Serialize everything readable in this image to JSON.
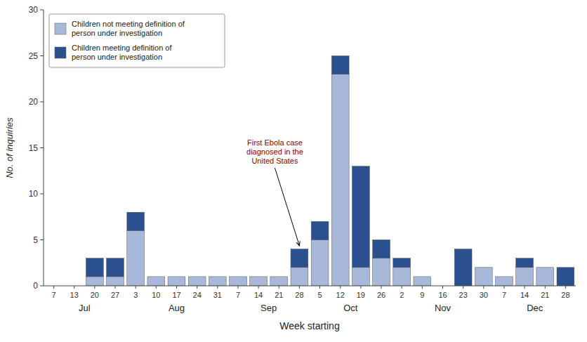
{
  "chart_data": {
    "type": "bar",
    "stacked": true,
    "categories": [
      "7",
      "13",
      "20",
      "27",
      "3",
      "10",
      "17",
      "24",
      "31",
      "7",
      "14",
      "21",
      "28",
      "5",
      "12",
      "19",
      "26",
      "2",
      "9",
      "16",
      "23",
      "30",
      "7",
      "14",
      "21",
      "28"
    ],
    "month_labels": [
      "Jul",
      "Aug",
      "Sep",
      "Oct",
      "Nov",
      "Dec"
    ],
    "series": [
      {
        "name": "Children not meeting definition of\nperson under investigation",
        "color": "#a8b8d8",
        "values": [
          0,
          0,
          1,
          1,
          6,
          1,
          1,
          1,
          1,
          1,
          1,
          1,
          2,
          5,
          23,
          2,
          3,
          2,
          1,
          0,
          0,
          2,
          1,
          2,
          2,
          0
        ]
      },
      {
        "name": "Children meeting definition of\nperson under investigation",
        "color": "#2a5090",
        "values": [
          0,
          0,
          2,
          2,
          2,
          0,
          0,
          0,
          0,
          0,
          0,
          0,
          2,
          2,
          2,
          11,
          2,
          1,
          0,
          0,
          4,
          0,
          0,
          1,
          0,
          2
        ]
      }
    ],
    "x_label": "Week starting",
    "y_label": "No. of inquiries",
    "ylim": [
      0,
      30
    ],
    "yticks": [
      0,
      5,
      10,
      15,
      20,
      25,
      30
    ],
    "legend": "upper left",
    "annotations": [
      {
        "text": "First Ebola case\ndiagnosed in the\nUnited States",
        "x": 12,
        "y": 4.2,
        "color": "#8B0000"
      }
    ]
  }
}
